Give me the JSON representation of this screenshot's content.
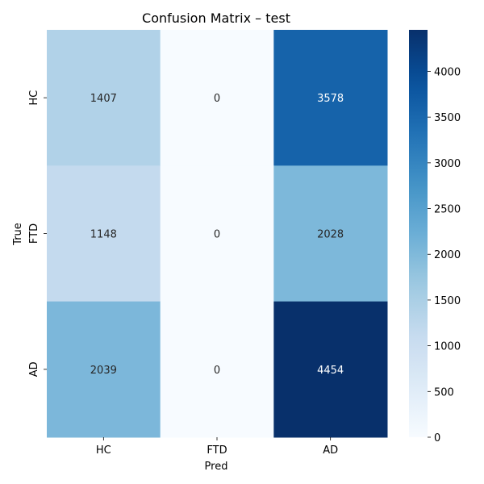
{
  "chart_data": {
    "type": "heatmap",
    "title": "Confusion Matrix – test",
    "xlabel": "Pred",
    "ylabel": "True",
    "x_categories": [
      "HC",
      "FTD",
      "AD"
    ],
    "y_categories": [
      "HC",
      "FTD",
      "AD"
    ],
    "values": [
      [
        1407,
        0,
        3578
      ],
      [
        1148,
        0,
        2028
      ],
      [
        2039,
        0,
        4454
      ]
    ],
    "colormap": "Blues",
    "color_range": [
      0,
      4454
    ],
    "colorbar_ticks": [
      0,
      500,
      1000,
      1500,
      2000,
      2500,
      3000,
      3500,
      4000
    ],
    "colorbar_tick_labels": [
      "0",
      "500",
      "1000",
      "1500",
      "2000",
      "2500",
      "3000",
      "3500",
      "4000"
    ],
    "grid": false
  }
}
